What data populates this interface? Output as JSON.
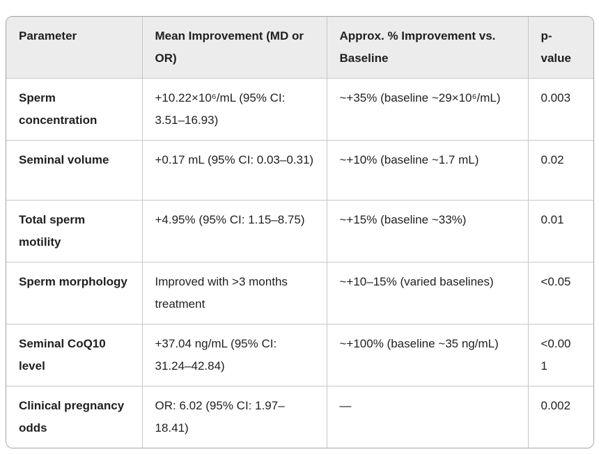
{
  "table": {
    "style": {
      "header_bg": "#ececec",
      "body_bg": "#ffffff",
      "outer_border": "#a3a3a3",
      "inner_border": "#c7c7c7",
      "text_color": "#1f1f1f"
    },
    "columns": [
      "Parameter",
      "Mean Improvement (MD or OR)",
      "Approx. % Improvement vs. Baseline",
      "p-value"
    ],
    "rows": [
      {
        "parameter": "Sperm concentration",
        "mean_improvement": "+10.22×10⁶/mL (95% CI: 3.51–16.93)",
        "pct_improvement": "~+35% (baseline ~29×10⁶/mL)",
        "p_value": "0.003"
      },
      {
        "parameter": "Seminal volume",
        "mean_improvement": "+0.17 mL (95% CI: 0.03–0.31)",
        "pct_improvement": "~+10% (baseline ~1.7 mL)",
        "p_value": "0.02"
      },
      {
        "parameter": "Total sperm motility",
        "mean_improvement": "+4.95% (95% CI: 1.15–8.75)",
        "pct_improvement": "~+15% (baseline ~33%)",
        "p_value": "0.01"
      },
      {
        "parameter": "Sperm morphology",
        "mean_improvement": "Improved with >3 months treatment",
        "pct_improvement": "~+10–15% (varied baselines)",
        "p_value": "<0.05"
      },
      {
        "parameter": "Seminal CoQ10 level",
        "mean_improvement": "+37.04 ng/mL (95% CI: 31.24–42.84)",
        "pct_improvement": "~+100% (baseline ~35 ng/mL)",
        "p_value": "<0.001"
      },
      {
        "parameter": "Clinical pregnancy odds",
        "mean_improvement": "OR: 6.02 (95% CI: 1.97–18.41)",
        "pct_improvement": "—",
        "p_value": "0.002"
      }
    ]
  }
}
